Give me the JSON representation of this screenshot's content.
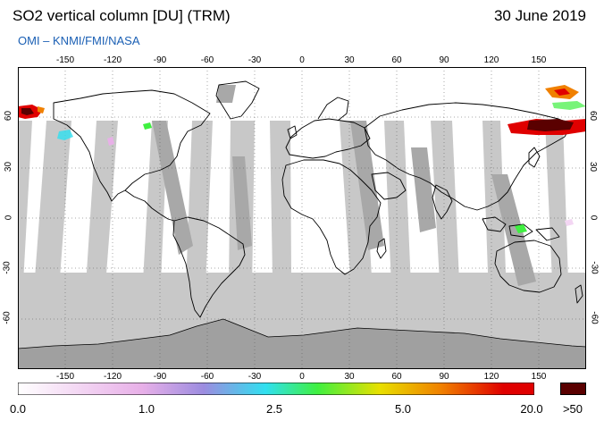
{
  "header": {
    "title": "SO2 vertical column [DU] (TRM)",
    "date": "30 June 2019",
    "subtitle": "OMI  –  KNMI/FMI/NASA"
  },
  "map": {
    "projection": "equirectangular",
    "lon_ticks": [
      "-150",
      "-120",
      "-90",
      "-60",
      "-30",
      "0",
      "30",
      "60",
      "90",
      "120",
      "150"
    ],
    "lat_ticks": [
      "60",
      "30",
      "0",
      "-30",
      "-60"
    ],
    "lon_range": [
      -180,
      180
    ],
    "lat_range": [
      -90,
      90
    ],
    "ocean_color": "#ffffff",
    "no_data_color": "#c8c8c8",
    "antarctica_color": "#a0a0a0",
    "coastline_color": "#000000"
  },
  "colorbar": {
    "labels": [
      "0.0",
      "1.0",
      "2.5",
      "5.0",
      "20.0",
      ">50"
    ],
    "colors": [
      "#ffffff",
      "#f3d6f3",
      "#e8b0e8",
      "#9c8ce0",
      "#30e0f0",
      "#3ff040",
      "#e8e000",
      "#f08000",
      "#e00000",
      "#5a0000"
    ]
  }
}
